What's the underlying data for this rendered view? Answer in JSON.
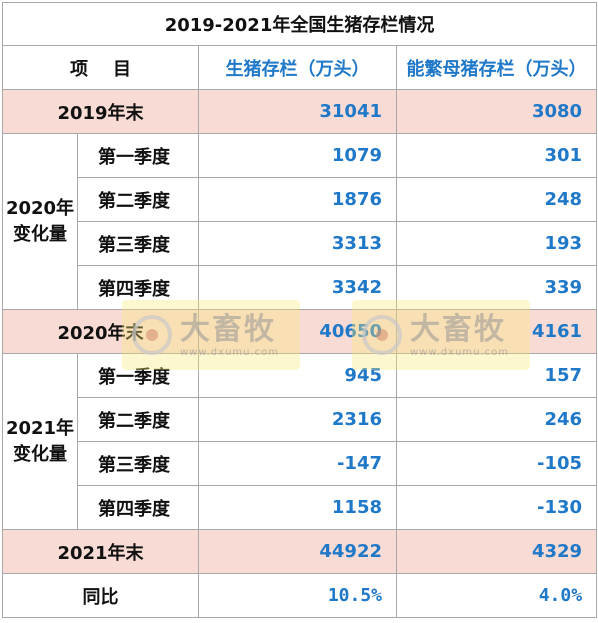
{
  "title": "2019-2021年全国生猪存栏情况",
  "headers": {
    "item": "项    目",
    "col1": "生猪存栏（万头）",
    "col2": "能繁母猪存栏（万头）"
  },
  "rows": {
    "y2019": {
      "label": "2019年末",
      "v1": "31041",
      "v2": "3080"
    },
    "g2020": {
      "label": "2020年变化量",
      "q": [
        {
          "label": "第一季度",
          "v1": "1079",
          "v2": "301"
        },
        {
          "label": "第二季度",
          "v1": "1876",
          "v2": "248"
        },
        {
          "label": "第三季度",
          "v1": "3313",
          "v2": "193"
        },
        {
          "label": "第四季度",
          "v1": "3342",
          "v2": "339"
        }
      ]
    },
    "y2020": {
      "label": "2020年末",
      "v1": "40650",
      "v2": "4161"
    },
    "g2021": {
      "label": "2021年变化量",
      "q": [
        {
          "label": "第一季度",
          "v1": "945",
          "v2": "157"
        },
        {
          "label": "第二季度",
          "v1": "2316",
          "v2": "246"
        },
        {
          "label": "第三季度",
          "v1": "-147",
          "v2": "-105"
        },
        {
          "label": "第四季度",
          "v1": "1158",
          "v2": "-130"
        }
      ]
    },
    "y2021": {
      "label": "2021年末",
      "v1": "44922",
      "v2": "4329"
    },
    "yoy": {
      "label": "同比",
      "v1": "10.5%",
      "v2": "4.0%"
    }
  },
  "watermark": {
    "name": "大畜牧",
    "url": "www.dxumu.com"
  }
}
